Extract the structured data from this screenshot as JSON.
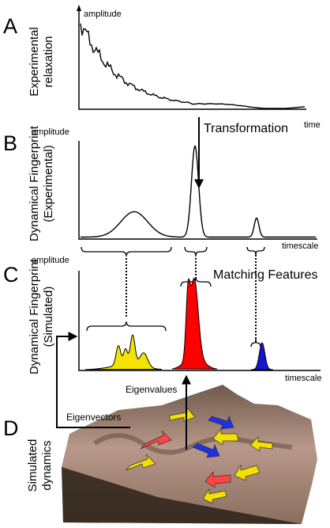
{
  "panels": [
    {
      "letter": "A",
      "label": [
        "Experimental",
        "relaxation"
      ],
      "y_axis": "amplitude",
      "x_axis": "time"
    },
    {
      "letter": "B",
      "label": [
        "Dynamical Fingerprint",
        "(Experimental)"
      ],
      "y_axis": "amplitude",
      "x_axis": "timescale",
      "annotation": "Transformation"
    },
    {
      "letter": "C",
      "label": [
        "Dynamical Fingerprint",
        "(Simulated)"
      ],
      "y_axis": "amplitude",
      "x_axis": "timescale",
      "annotation": "Matching Features"
    },
    {
      "letter": "D",
      "label": [
        "Simulated",
        "dynamics"
      ],
      "annotations": [
        "Eigenvalues",
        "Eigenvectors"
      ]
    }
  ]
}
